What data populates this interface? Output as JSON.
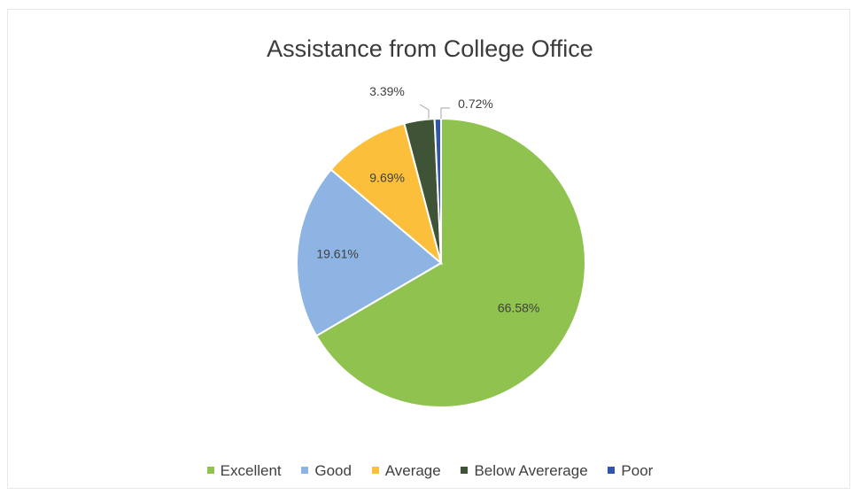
{
  "chart_data": {
    "type": "pie",
    "title": "Assistance from College Office",
    "legend_position": "bottom",
    "slices": [
      {
        "label": "Excellent",
        "value": 66.58,
        "display": "66.58%",
        "color": "#8fc24f"
      },
      {
        "label": "Good",
        "value": 19.61,
        "display": "19.61%",
        "color": "#8eb4e3"
      },
      {
        "label": "Average",
        "value": 9.69,
        "display": "9.69%",
        "color": "#fbbf3c"
      },
      {
        "label": "Below Avererage",
        "value": 3.39,
        "display": "3.39%",
        "color": "#3f5336"
      },
      {
        "label": "Poor",
        "value": 0.72,
        "display": "0.72%",
        "color": "#2f56a8"
      }
    ]
  }
}
